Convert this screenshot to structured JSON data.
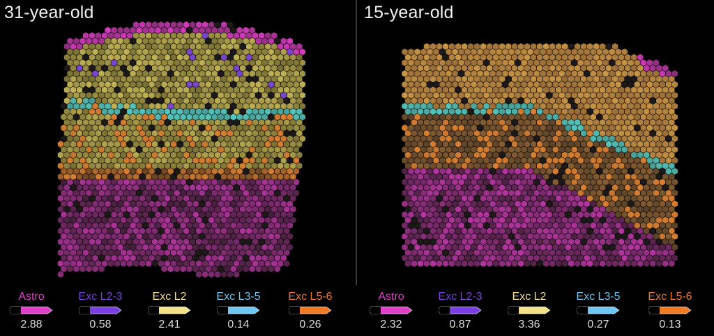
{
  "panels": [
    {
      "title": "31-year-old",
      "legend": [
        {
          "label": "Astro",
          "value": "2.88",
          "color": "#e040c8"
        },
        {
          "label": "Exc L2-3",
          "value": "0.58",
          "color": "#7a3fe0"
        },
        {
          "label": "Exc L2",
          "value": "2.41",
          "color": "#f5e08a"
        },
        {
          "label": "Exc L3-5",
          "value": "0.14",
          "color": "#6fc6f0"
        },
        {
          "label": "Exc L5-6",
          "value": "0.26",
          "color": "#f07a24"
        }
      ]
    },
    {
      "title": "15-year-old",
      "legend": [
        {
          "label": "Astro",
          "value": "2.32",
          "color": "#e040c8"
        },
        {
          "label": "Exc L2-3",
          "value": "0.87",
          "color": "#7a3fe0"
        },
        {
          "label": "Exc L2",
          "value": "3.36",
          "color": "#f5e08a"
        },
        {
          "label": "Exc L3-5",
          "value": "0.27",
          "color": "#6fc6f0"
        },
        {
          "label": "Exc L5-6",
          "value": "0.13",
          "color": "#f07a24"
        }
      ]
    }
  ]
}
